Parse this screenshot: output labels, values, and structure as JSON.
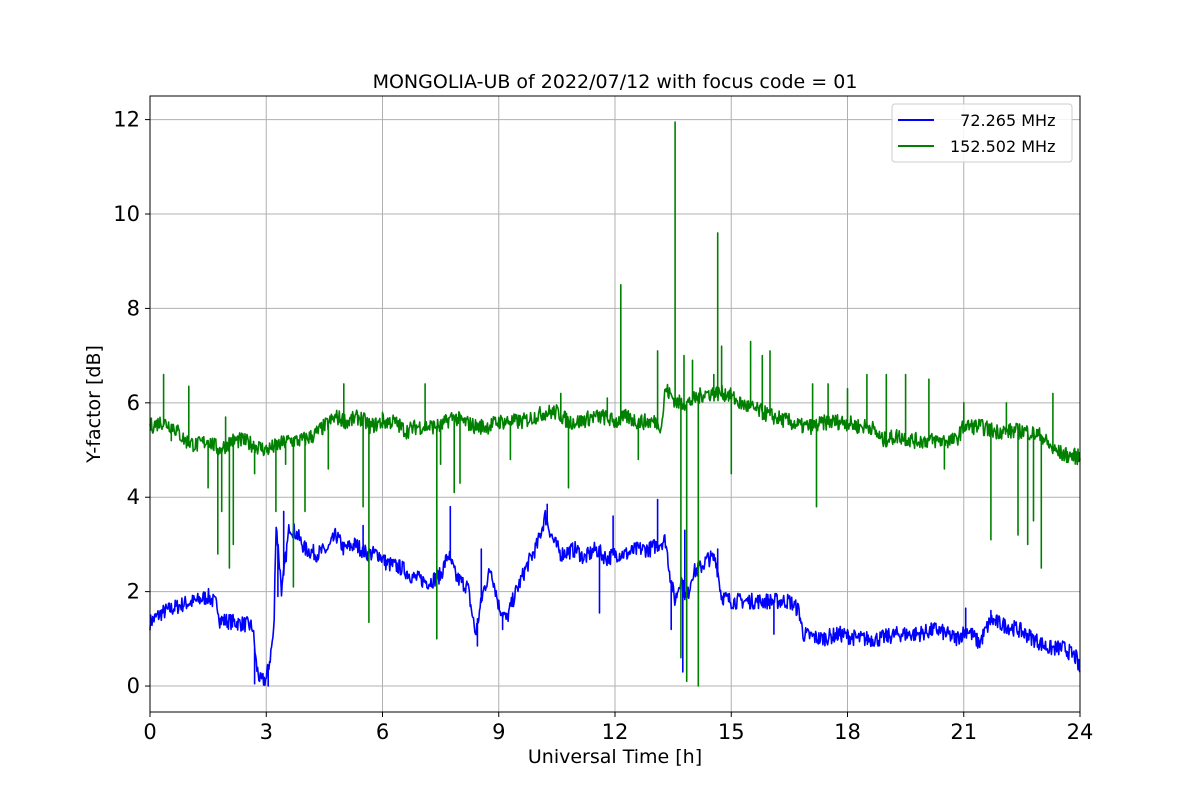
{
  "chart_data": {
    "type": "line",
    "title": "MONGOLIA-UB of 2022/07/12 with focus code = 01",
    "xlabel": "Universal Time [h]",
    "ylabel": "Y-factor [dB]",
    "xlim": [
      0,
      24
    ],
    "ylim": [
      -0.55,
      12.5
    ],
    "xticks": [
      0,
      3,
      6,
      9,
      12,
      15,
      18,
      21,
      24
    ],
    "xtick_labels": [
      "0",
      "3",
      "6",
      "9",
      "12",
      "15",
      "18",
      "21",
      "24"
    ],
    "yticks": [
      0,
      2,
      4,
      6,
      8,
      10,
      12
    ],
    "ytick_labels": [
      "0",
      "2",
      "4",
      "6",
      "8",
      "10",
      "12"
    ],
    "grid": true,
    "legend_position": "top-right",
    "series": [
      {
        "name": "  72.265 MHz",
        "color": "#0000ff",
        "points": [
          [
            0.0,
            1.35
          ],
          [
            0.3,
            1.55
          ],
          [
            0.6,
            1.65
          ],
          [
            0.9,
            1.75
          ],
          [
            1.2,
            1.8
          ],
          [
            1.5,
            1.9
          ],
          [
            1.75,
            1.7
          ],
          [
            1.8,
            1.4
          ],
          [
            2.2,
            1.35
          ],
          [
            2.5,
            1.3
          ],
          [
            2.65,
            1.25
          ],
          [
            2.75,
            0.4
          ],
          [
            2.85,
            0.1
          ],
          [
            3.0,
            0.15
          ],
          [
            3.1,
            0.6
          ],
          [
            3.2,
            1.2
          ],
          [
            3.25,
            3.5
          ],
          [
            3.4,
            2.0
          ],
          [
            3.6,
            3.4
          ],
          [
            3.8,
            3.2
          ],
          [
            4.0,
            2.9
          ],
          [
            4.3,
            2.8
          ],
          [
            4.6,
            2.9
          ],
          [
            4.8,
            3.2
          ],
          [
            5.0,
            2.9
          ],
          [
            5.3,
            3.0
          ],
          [
            5.6,
            2.8
          ],
          [
            5.9,
            2.8
          ],
          [
            6.1,
            2.6
          ],
          [
            6.5,
            2.5
          ],
          [
            6.8,
            2.3
          ],
          [
            7.2,
            2.2
          ],
          [
            7.5,
            2.35
          ],
          [
            7.7,
            2.8
          ],
          [
            7.9,
            2.3
          ],
          [
            8.2,
            2.1
          ],
          [
            8.4,
            1.1
          ],
          [
            8.6,
            2.0
          ],
          [
            8.8,
            2.5
          ],
          [
            9.0,
            1.7
          ],
          [
            9.2,
            1.4
          ],
          [
            9.4,
            1.9
          ],
          [
            9.7,
            2.5
          ],
          [
            10.0,
            3.0
          ],
          [
            10.2,
            3.6
          ],
          [
            10.4,
            3.1
          ],
          [
            10.6,
            2.8
          ],
          [
            11.0,
            2.9
          ],
          [
            11.2,
            2.7
          ],
          [
            11.5,
            2.9
          ],
          [
            11.8,
            2.7
          ],
          [
            12.0,
            2.8
          ],
          [
            12.3,
            2.8
          ],
          [
            12.6,
            2.9
          ],
          [
            12.9,
            2.9
          ],
          [
            13.1,
            3.0
          ],
          [
            13.3,
            3.1
          ],
          [
            13.45,
            2.2
          ],
          [
            13.55,
            1.8
          ],
          [
            13.7,
            2.3
          ],
          [
            13.85,
            1.8
          ],
          [
            14.0,
            2.4
          ],
          [
            14.2,
            2.5
          ],
          [
            14.4,
            2.7
          ],
          [
            14.6,
            2.7
          ],
          [
            14.75,
            1.9
          ],
          [
            15.0,
            1.8
          ],
          [
            15.4,
            1.8
          ],
          [
            15.8,
            1.8
          ],
          [
            16.2,
            1.8
          ],
          [
            16.5,
            1.8
          ],
          [
            16.75,
            1.6
          ],
          [
            16.85,
            1.1
          ],
          [
            17.3,
            1.0
          ],
          [
            17.8,
            1.1
          ],
          [
            18.3,
            1.0
          ],
          [
            18.8,
            1.0
          ],
          [
            19.3,
            1.1
          ],
          [
            19.8,
            1.1
          ],
          [
            20.3,
            1.2
          ],
          [
            20.8,
            1.0
          ],
          [
            21.1,
            1.2
          ],
          [
            21.4,
            0.9
          ],
          [
            21.7,
            1.4
          ],
          [
            22.0,
            1.3
          ],
          [
            22.4,
            1.2
          ],
          [
            22.8,
            1.0
          ],
          [
            23.2,
            0.8
          ],
          [
            23.6,
            0.8
          ],
          [
            23.9,
            0.6
          ],
          [
            24.0,
            0.3
          ]
        ],
        "spikes": [
          [
            2.7,
            0.05
          ],
          [
            3.05,
            0.0
          ],
          [
            3.3,
            1.9
          ],
          [
            3.45,
            3.7
          ],
          [
            5.5,
            3.4
          ],
          [
            7.75,
            3.8
          ],
          [
            8.45,
            0.85
          ],
          [
            8.55,
            2.9
          ],
          [
            9.1,
            1.2
          ],
          [
            10.25,
            3.85
          ],
          [
            11.6,
            1.55
          ],
          [
            11.95,
            3.6
          ],
          [
            13.1,
            3.95
          ],
          [
            13.45,
            1.2
          ],
          [
            13.75,
            0.3
          ],
          [
            13.8,
            3.3
          ],
          [
            14.15,
            1.6
          ],
          [
            14.65,
            2.9
          ],
          [
            16.1,
            1.1
          ],
          [
            21.05,
            1.65
          ],
          [
            21.7,
            1.6
          ]
        ]
      },
      {
        "name": "152.502 MHz",
        "color": "#008000",
        "points": [
          [
            0.0,
            5.5
          ],
          [
            0.3,
            5.6
          ],
          [
            0.6,
            5.5
          ],
          [
            0.9,
            5.2
          ],
          [
            1.2,
            5.1
          ],
          [
            1.5,
            5.2
          ],
          [
            1.8,
            5.0
          ],
          [
            2.1,
            5.2
          ],
          [
            2.4,
            5.2
          ],
          [
            2.7,
            5.1
          ],
          [
            3.0,
            5.0
          ],
          [
            3.3,
            5.1
          ],
          [
            3.6,
            5.2
          ],
          [
            3.9,
            5.2
          ],
          [
            4.2,
            5.3
          ],
          [
            4.5,
            5.5
          ],
          [
            4.8,
            5.7
          ],
          [
            5.1,
            5.6
          ],
          [
            5.4,
            5.7
          ],
          [
            5.7,
            5.5
          ],
          [
            6.0,
            5.6
          ],
          [
            6.3,
            5.6
          ],
          [
            6.6,
            5.4
          ],
          [
            6.9,
            5.5
          ],
          [
            7.2,
            5.5
          ],
          [
            7.5,
            5.5
          ],
          [
            7.8,
            5.7
          ],
          [
            8.1,
            5.6
          ],
          [
            8.4,
            5.5
          ],
          [
            8.7,
            5.5
          ],
          [
            9.0,
            5.6
          ],
          [
            9.3,
            5.6
          ],
          [
            9.6,
            5.6
          ],
          [
            9.9,
            5.7
          ],
          [
            10.2,
            5.8
          ],
          [
            10.5,
            5.8
          ],
          [
            10.8,
            5.6
          ],
          [
            11.1,
            5.6
          ],
          [
            11.4,
            5.7
          ],
          [
            11.7,
            5.7
          ],
          [
            12.0,
            5.6
          ],
          [
            12.3,
            5.7
          ],
          [
            12.6,
            5.6
          ],
          [
            12.9,
            5.6
          ],
          [
            13.1,
            5.6
          ],
          [
            13.2,
            5.5
          ],
          [
            13.3,
            6.3
          ],
          [
            13.6,
            6.0
          ],
          [
            13.9,
            6.0
          ],
          [
            14.1,
            6.1
          ],
          [
            14.3,
            6.2
          ],
          [
            14.6,
            6.2
          ],
          [
            14.9,
            6.2
          ],
          [
            15.2,
            6.0
          ],
          [
            15.5,
            5.9
          ],
          [
            15.8,
            5.8
          ],
          [
            16.1,
            5.7
          ],
          [
            16.5,
            5.6
          ],
          [
            16.8,
            5.5
          ],
          [
            17.1,
            5.5
          ],
          [
            17.5,
            5.6
          ],
          [
            17.9,
            5.6
          ],
          [
            18.3,
            5.5
          ],
          [
            18.6,
            5.5
          ],
          [
            18.9,
            5.2
          ],
          [
            19.3,
            5.3
          ],
          [
            19.7,
            5.2
          ],
          [
            20.0,
            5.2
          ],
          [
            20.4,
            5.2
          ],
          [
            20.8,
            5.2
          ],
          [
            21.0,
            5.5
          ],
          [
            21.4,
            5.5
          ],
          [
            21.8,
            5.4
          ],
          [
            22.2,
            5.4
          ],
          [
            22.6,
            5.4
          ],
          [
            23.0,
            5.3
          ],
          [
            23.3,
            5.0
          ],
          [
            23.6,
            4.9
          ],
          [
            24.0,
            4.85
          ]
        ],
        "spikes": [
          [
            0.35,
            6.6
          ],
          [
            0.55,
            5.2
          ],
          [
            1.0,
            6.35
          ],
          [
            1.5,
            4.2
          ],
          [
            1.75,
            2.8
          ],
          [
            1.85,
            3.7
          ],
          [
            1.95,
            5.7
          ],
          [
            2.05,
            2.5
          ],
          [
            2.15,
            3.0
          ],
          [
            2.7,
            4.5
          ],
          [
            3.25,
            3.7
          ],
          [
            3.5,
            4.7
          ],
          [
            3.7,
            2.1
          ],
          [
            4.0,
            3.7
          ],
          [
            4.6,
            4.6
          ],
          [
            5.0,
            6.4
          ],
          [
            5.5,
            3.8
          ],
          [
            5.65,
            1.35
          ],
          [
            6.0,
            5.8
          ],
          [
            7.1,
            6.4
          ],
          [
            7.4,
            1.0
          ],
          [
            7.5,
            4.7
          ],
          [
            7.85,
            4.1
          ],
          [
            8.0,
            4.3
          ],
          [
            8.55,
            5.6
          ],
          [
            9.3,
            4.8
          ],
          [
            10.6,
            6.2
          ],
          [
            10.8,
            4.2
          ],
          [
            11.8,
            6.1
          ],
          [
            12.15,
            8.5
          ],
          [
            12.6,
            4.8
          ],
          [
            13.1,
            7.1
          ],
          [
            13.55,
            11.95
          ],
          [
            13.7,
            0.6
          ],
          [
            13.78,
            7.0
          ],
          [
            13.85,
            0.1
          ],
          [
            14.0,
            6.9
          ],
          [
            14.15,
            0.0
          ],
          [
            14.55,
            6.6
          ],
          [
            14.65,
            9.6
          ],
          [
            14.75,
            7.2
          ],
          [
            15.0,
            4.5
          ],
          [
            15.5,
            7.3
          ],
          [
            15.8,
            7.0
          ],
          [
            16.0,
            7.1
          ],
          [
            17.1,
            6.4
          ],
          [
            17.2,
            3.8
          ],
          [
            17.5,
            6.4
          ],
          [
            18.0,
            6.3
          ],
          [
            18.5,
            6.6
          ],
          [
            19.0,
            6.6
          ],
          [
            19.5,
            6.6
          ],
          [
            20.1,
            6.5
          ],
          [
            20.5,
            4.6
          ],
          [
            21.0,
            6.0
          ],
          [
            21.7,
            3.1
          ],
          [
            22.1,
            6.0
          ],
          [
            22.4,
            3.2
          ],
          [
            22.65,
            3.0
          ],
          [
            22.8,
            3.5
          ],
          [
            23.0,
            2.5
          ],
          [
            23.3,
            6.2
          ]
        ]
      }
    ]
  }
}
